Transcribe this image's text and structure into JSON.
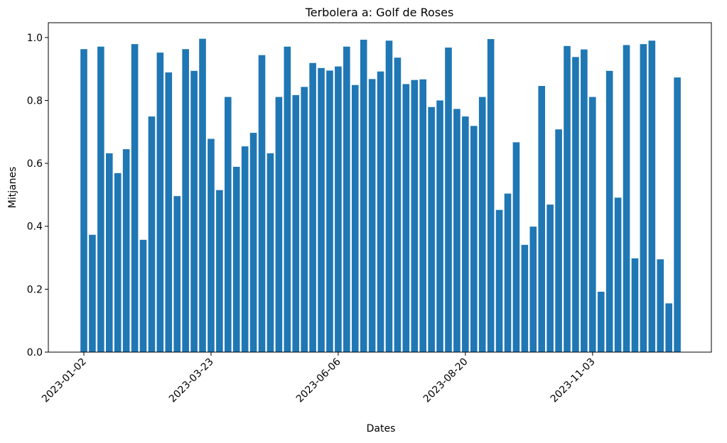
{
  "chart_data": {
    "type": "bar",
    "title": "Terbolera a: Golf de Roses",
    "x_label": "Dates",
    "y_label": "Mitjanes",
    "color": "#1f77b4",
    "categories": [
      "2023-01-02",
      null,
      null,
      null,
      null,
      null,
      null,
      null,
      null,
      null,
      null,
      null,
      null,
      null,
      null,
      "2023-03-23",
      null,
      null,
      null,
      null,
      null,
      null,
      null,
      null,
      null,
      null,
      null,
      null,
      null,
      null,
      "2023-06-06",
      null,
      null,
      null,
      null,
      null,
      null,
      null,
      null,
      null,
      null,
      null,
      null,
      null,
      null,
      "2023-08-20",
      null,
      null,
      null,
      null,
      null,
      null,
      null,
      null,
      null,
      null,
      null,
      null,
      null,
      null,
      "2023-11-03",
      null,
      null,
      null,
      null,
      null,
      null,
      null,
      null,
      null,
      null
    ],
    "values": [
      0.963,
      0.373,
      0.971,
      0.632,
      0.569,
      0.645,
      0.979,
      0.357,
      0.749,
      0.952,
      0.889,
      0.496,
      0.963,
      0.894,
      0.996,
      0.678,
      0.515,
      0.811,
      0.589,
      0.654,
      0.697,
      0.944,
      0.632,
      0.811,
      0.971,
      0.817,
      0.843,
      0.919,
      0.903,
      0.895,
      0.908,
      0.971,
      0.849,
      0.993,
      0.868,
      0.892,
      0.99,
      0.936,
      0.852,
      0.865,
      0.867,
      0.779,
      0.8,
      0.968,
      0.773,
      0.749,
      0.719,
      0.811,
      0.995,
      0.452,
      0.504,
      0.667,
      0.341,
      0.399,
      0.846,
      0.469,
      0.708,
      0.973,
      0.938,
      0.962,
      0.811,
      0.192,
      0.894,
      0.491,
      0.976,
      0.298,
      0.979,
      0.99,
      0.295,
      0.155,
      0.873
    ],
    "ylim": [
      0,
      1.047
    ],
    "yticks": [
      {
        "value": 0,
        "label": "0.0"
      },
      {
        "value": 0.2,
        "label": "0.2"
      },
      {
        "value": 0.4,
        "label": "0.4"
      },
      {
        "value": 0.6,
        "label": "0.6"
      },
      {
        "value": 0.8,
        "label": "0.8"
      },
      {
        "value": 1,
        "label": "1.0"
      }
    ],
    "grid": false
  }
}
